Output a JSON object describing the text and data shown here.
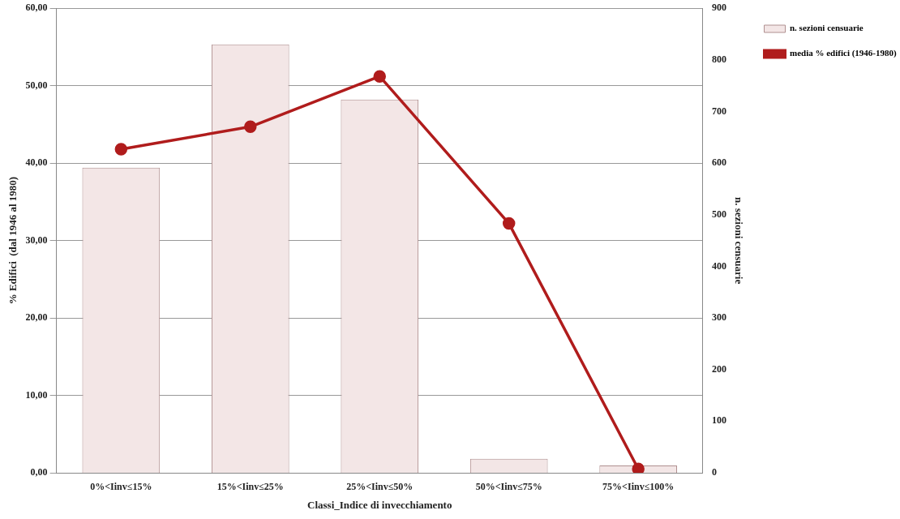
{
  "chart_data": {
    "type": "bar",
    "xlabel": "Classi_Indice di invecchiamento",
    "ylabel": "% Edifici  (dal 1946 al 1980)",
    "y2label": "n. sezioni censuarie",
    "categories": [
      "0%<Iinv≤15%",
      "15%<Iinv≤25%",
      "25%<Iinv≤50%",
      "50%<Iinv≤75%",
      "75%<Iinv≤100%"
    ],
    "series": [
      {
        "name": "n. sezioni censuarie",
        "axis": "y2",
        "color": "#f3e6e6",
        "values": [
          591,
          830,
          723,
          27,
          14
        ]
      },
      {
        "name": "media % edifici (1946-1980)",
        "type": "line",
        "axis": "y",
        "color": "#b01c1c",
        "values": [
          41.8,
          44.7,
          51.2,
          32.2,
          0.5
        ]
      }
    ],
    "ylim": [
      0,
      60
    ],
    "yticks": [
      {
        "value": 0,
        "label": "0,00"
      },
      {
        "value": 10,
        "label": "10,00"
      },
      {
        "value": 20,
        "label": "20,00"
      },
      {
        "value": 30,
        "label": "30,00"
      },
      {
        "value": 40,
        "label": "40,00"
      },
      {
        "value": 50,
        "label": "50,00"
      },
      {
        "value": 60,
        "label": "60,00"
      }
    ],
    "y2lim": [
      0,
      900
    ],
    "y2ticks": [
      0,
      100,
      200,
      300,
      400,
      500,
      600,
      700,
      800,
      900
    ],
    "grid": "y",
    "legend": "top right",
    "marker": "circle"
  }
}
